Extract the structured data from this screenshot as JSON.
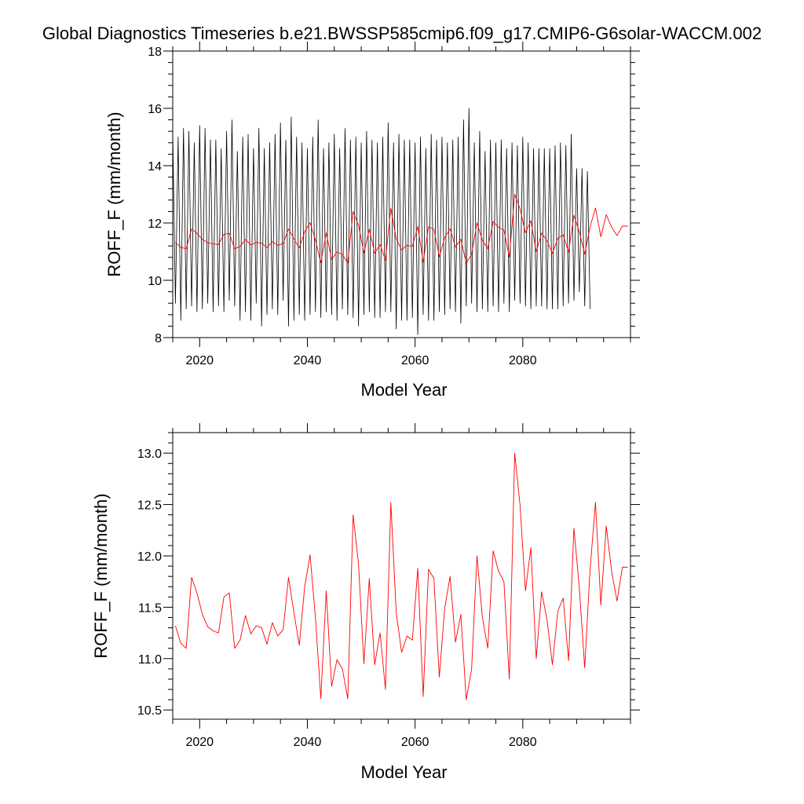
{
  "title": "Global Diagnostics Timeseries b.e21.BWSSP585cmip6.f09_g17.CMIP6-G6solar-WACCM.002",
  "colors": {
    "monthly": "#000000",
    "annual": "#ff0000"
  },
  "chart_data": [
    {
      "type": "line",
      "ylabel": "ROFF_F (mm/month)",
      "xlabel": "Model Year",
      "xlim": [
        2015,
        2100
      ],
      "ylim": [
        8,
        18
      ],
      "x_ticks": [
        2020,
        2040,
        2060,
        2080
      ],
      "y_ticks": [
        8,
        10,
        12,
        14,
        16,
        18
      ],
      "y_tick_labels": [
        "8",
        "10",
        "12",
        "14",
        "16",
        "18"
      ],
      "series": [
        {
          "role": "monthly",
          "x_start": 2015.0,
          "x_step": 0.5,
          "values": [
            15.2,
            9.2,
            15.0,
            8.6,
            15.3,
            9.0,
            15.2,
            9.1,
            14.8,
            8.9,
            15.4,
            9.0,
            15.3,
            9.2,
            14.9,
            8.9,
            14.9,
            9.1,
            14.6,
            8.9,
            15.2,
            9.3,
            15.6,
            9.1,
            14.5,
            8.6,
            15.0,
            8.9,
            15.1,
            8.6,
            14.6,
            9.2,
            15.3,
            8.4,
            14.6,
            8.8,
            14.8,
            9.0,
            15.1,
            8.8,
            15.5,
            9.3,
            14.9,
            8.4,
            15.7,
            8.6,
            15.0,
            8.8,
            14.8,
            8.6,
            14.6,
            8.8,
            15.0,
            8.9,
            15.6,
            8.7,
            14.6,
            8.9,
            14.8,
            8.8,
            15.1,
            8.6,
            14.6,
            9.0,
            15.3,
            8.8,
            14.9,
            8.7,
            15.0,
            8.4,
            14.8,
            8.8,
            15.2,
            8.9,
            14.9,
            8.7,
            14.8,
            8.7,
            15.0,
            8.9,
            15.5,
            8.9,
            14.8,
            8.3,
            15.1,
            8.6,
            14.9,
            8.6,
            14.9,
            8.7,
            14.8,
            8.1,
            15.0,
            8.8,
            14.6,
            8.6,
            15.1,
            8.6,
            14.9,
            8.9,
            15.0,
            8.8,
            14.8,
            9.0,
            14.9,
            8.9,
            15.0,
            8.5,
            15.6,
            9.1,
            16.0,
            9.2,
            14.8,
            8.9,
            15.2,
            9.0,
            14.5,
            8.9,
            14.9,
            9.1,
            14.8,
            8.9,
            14.9,
            9.2,
            14.6,
            8.9,
            14.8,
            9.3,
            14.7,
            9.2,
            15.0,
            9.1,
            14.8,
            9.0,
            14.6,
            9.1,
            14.6,
            9.1,
            14.6,
            9.0,
            14.6,
            9.0,
            14.7,
            9.0,
            14.8,
            9.1,
            14.7,
            9.2,
            15.1,
            9.3,
            13.9,
            9.6,
            13.9,
            9.1,
            13.8,
            9.0
          ]
        },
        {
          "role": "annual",
          "x": [
            2015.5,
            2016.5,
            2017.5,
            2018.5,
            2019.5,
            2020.5,
            2021.5,
            2022.5,
            2023.5,
            2024.5,
            2025.5,
            2026.5,
            2027.5,
            2028.5,
            2029.5,
            2030.5,
            2031.5,
            2032.5,
            2033.5,
            2034.5,
            2035.5,
            2036.5,
            2037.5,
            2038.5,
            2039.5,
            2040.5,
            2041.5,
            2042.5,
            2043.5,
            2044.5,
            2045.5,
            2046.5,
            2047.5,
            2048.5,
            2049.5,
            2050.5,
            2051.5,
            2052.5,
            2053.5,
            2054.5,
            2055.5,
            2056.5,
            2057.5,
            2058.5,
            2059.5,
            2060.5,
            2061.5,
            2062.5,
            2063.5,
            2064.5,
            2065.5,
            2066.5,
            2067.5,
            2068.5,
            2069.5,
            2070.5,
            2071.5,
            2072.5,
            2073.5,
            2074.5,
            2075.5,
            2076.5,
            2077.5,
            2078.5,
            2079.5,
            2080.5,
            2081.5,
            2082.5,
            2083.5,
            2084.5,
            2085.5,
            2086.5,
            2087.5,
            2088.5,
            2089.5,
            2090.5,
            2091.5,
            2092.5,
            2093.5,
            2094.5,
            2095.5,
            2096.5,
            2097.5,
            2098.5,
            2099.5
          ],
          "values": [
            11.32,
            11.15,
            11.1,
            11.79,
            11.64,
            11.43,
            11.31,
            11.27,
            11.25,
            11.6,
            11.64,
            11.1,
            11.18,
            11.42,
            11.24,
            11.32,
            11.3,
            11.14,
            11.35,
            11.22,
            11.28,
            11.79,
            11.45,
            11.13,
            11.7,
            12.01,
            11.4,
            10.61,
            11.66,
            10.73,
            10.99,
            10.9,
            10.61,
            12.4,
            11.92,
            10.95,
            11.78,
            10.94,
            11.25,
            10.7,
            12.52,
            11.45,
            11.06,
            11.22,
            11.18,
            11.88,
            10.63,
            11.87,
            11.78,
            10.82,
            11.49,
            11.8,
            11.16,
            11.43,
            10.6,
            10.9,
            12.0,
            11.4,
            11.1,
            12.05,
            11.85,
            11.75,
            10.8,
            13.0,
            12.49,
            11.66,
            12.08,
            11.0,
            11.65,
            11.38,
            10.94,
            11.46,
            11.59,
            10.98,
            12.27,
            11.69,
            10.91,
            11.87,
            12.52,
            11.52,
            12.29,
            11.85,
            11.56,
            11.89,
            11.89
          ]
        }
      ]
    },
    {
      "type": "line",
      "ylabel": "ROFF_F (mm/month)",
      "xlabel": "Model Year",
      "xlim": [
        2015,
        2100
      ],
      "ylim": [
        10.41,
        13.2
      ],
      "x_ticks": [
        2020,
        2040,
        2060,
        2080
      ],
      "y_ticks": [
        10.5,
        11.0,
        11.5,
        12.0,
        12.5,
        13.0
      ],
      "y_tick_labels": [
        "10.5",
        "11.0",
        "11.5",
        "12.0",
        "12.5",
        "13.0"
      ],
      "series": [
        {
          "role": "annual",
          "x": [
            2015.5,
            2016.5,
            2017.5,
            2018.5,
            2019.5,
            2020.5,
            2021.5,
            2022.5,
            2023.5,
            2024.5,
            2025.5,
            2026.5,
            2027.5,
            2028.5,
            2029.5,
            2030.5,
            2031.5,
            2032.5,
            2033.5,
            2034.5,
            2035.5,
            2036.5,
            2037.5,
            2038.5,
            2039.5,
            2040.5,
            2041.5,
            2042.5,
            2043.5,
            2044.5,
            2045.5,
            2046.5,
            2047.5,
            2048.5,
            2049.5,
            2050.5,
            2051.5,
            2052.5,
            2053.5,
            2054.5,
            2055.5,
            2056.5,
            2057.5,
            2058.5,
            2059.5,
            2060.5,
            2061.5,
            2062.5,
            2063.5,
            2064.5,
            2065.5,
            2066.5,
            2067.5,
            2068.5,
            2069.5,
            2070.5,
            2071.5,
            2072.5,
            2073.5,
            2074.5,
            2075.5,
            2076.5,
            2077.5,
            2078.5,
            2079.5,
            2080.5,
            2081.5,
            2082.5,
            2083.5,
            2084.5,
            2085.5,
            2086.5,
            2087.5,
            2088.5,
            2089.5,
            2090.5,
            2091.5,
            2092.5,
            2093.5,
            2094.5,
            2095.5,
            2096.5,
            2097.5,
            2098.5,
            2099.5
          ],
          "values": [
            11.32,
            11.15,
            11.1,
            11.79,
            11.64,
            11.43,
            11.31,
            11.27,
            11.25,
            11.6,
            11.64,
            11.1,
            11.18,
            11.42,
            11.24,
            11.32,
            11.3,
            11.14,
            11.35,
            11.22,
            11.28,
            11.79,
            11.45,
            11.13,
            11.7,
            12.01,
            11.4,
            10.61,
            11.66,
            10.73,
            10.99,
            10.9,
            10.61,
            12.4,
            11.92,
            10.95,
            11.78,
            10.94,
            11.25,
            10.7,
            12.52,
            11.45,
            11.06,
            11.22,
            11.18,
            11.88,
            10.63,
            11.87,
            11.78,
            10.82,
            11.49,
            11.8,
            11.16,
            11.43,
            10.6,
            10.9,
            12.0,
            11.4,
            11.1,
            12.05,
            11.85,
            11.75,
            10.8,
            13.0,
            12.49,
            11.66,
            12.08,
            11.0,
            11.65,
            11.38,
            10.94,
            11.46,
            11.59,
            10.98,
            12.27,
            11.69,
            10.91,
            11.87,
            12.52,
            11.52,
            12.29,
            11.85,
            11.56,
            11.89,
            11.89
          ]
        }
      ]
    }
  ]
}
